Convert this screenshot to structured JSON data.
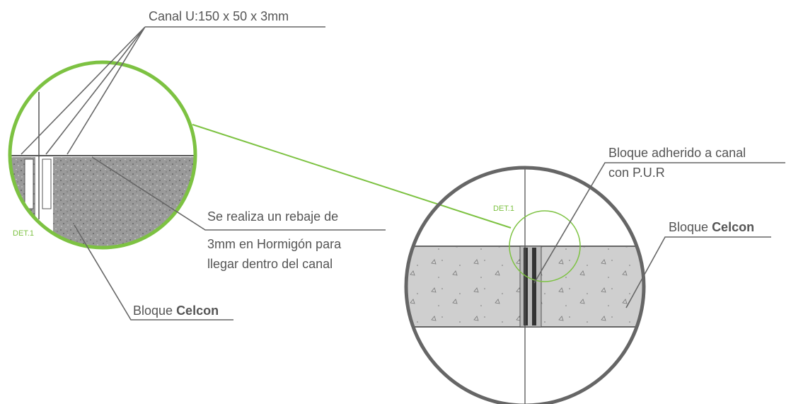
{
  "left_detail": {
    "channel_label": "Canal U:150 x 50 x 3mm",
    "rebate_note": [
      "Se realiza un rebaje de",
      "3mm en Hormigón para",
      "llegar dentro del canal"
    ],
    "block_label": {
      "text": "Bloque",
      "emphasis": "Celcon"
    },
    "detail_tag": "DET.1"
  },
  "right_detail": {
    "adhesion_note": [
      "Bloque adherido a canal",
      "con P.U.R"
    ],
    "block_label": {
      "text": "Bloque",
      "emphasis": "Celcon"
    },
    "detail_tag": "DET.1"
  }
}
